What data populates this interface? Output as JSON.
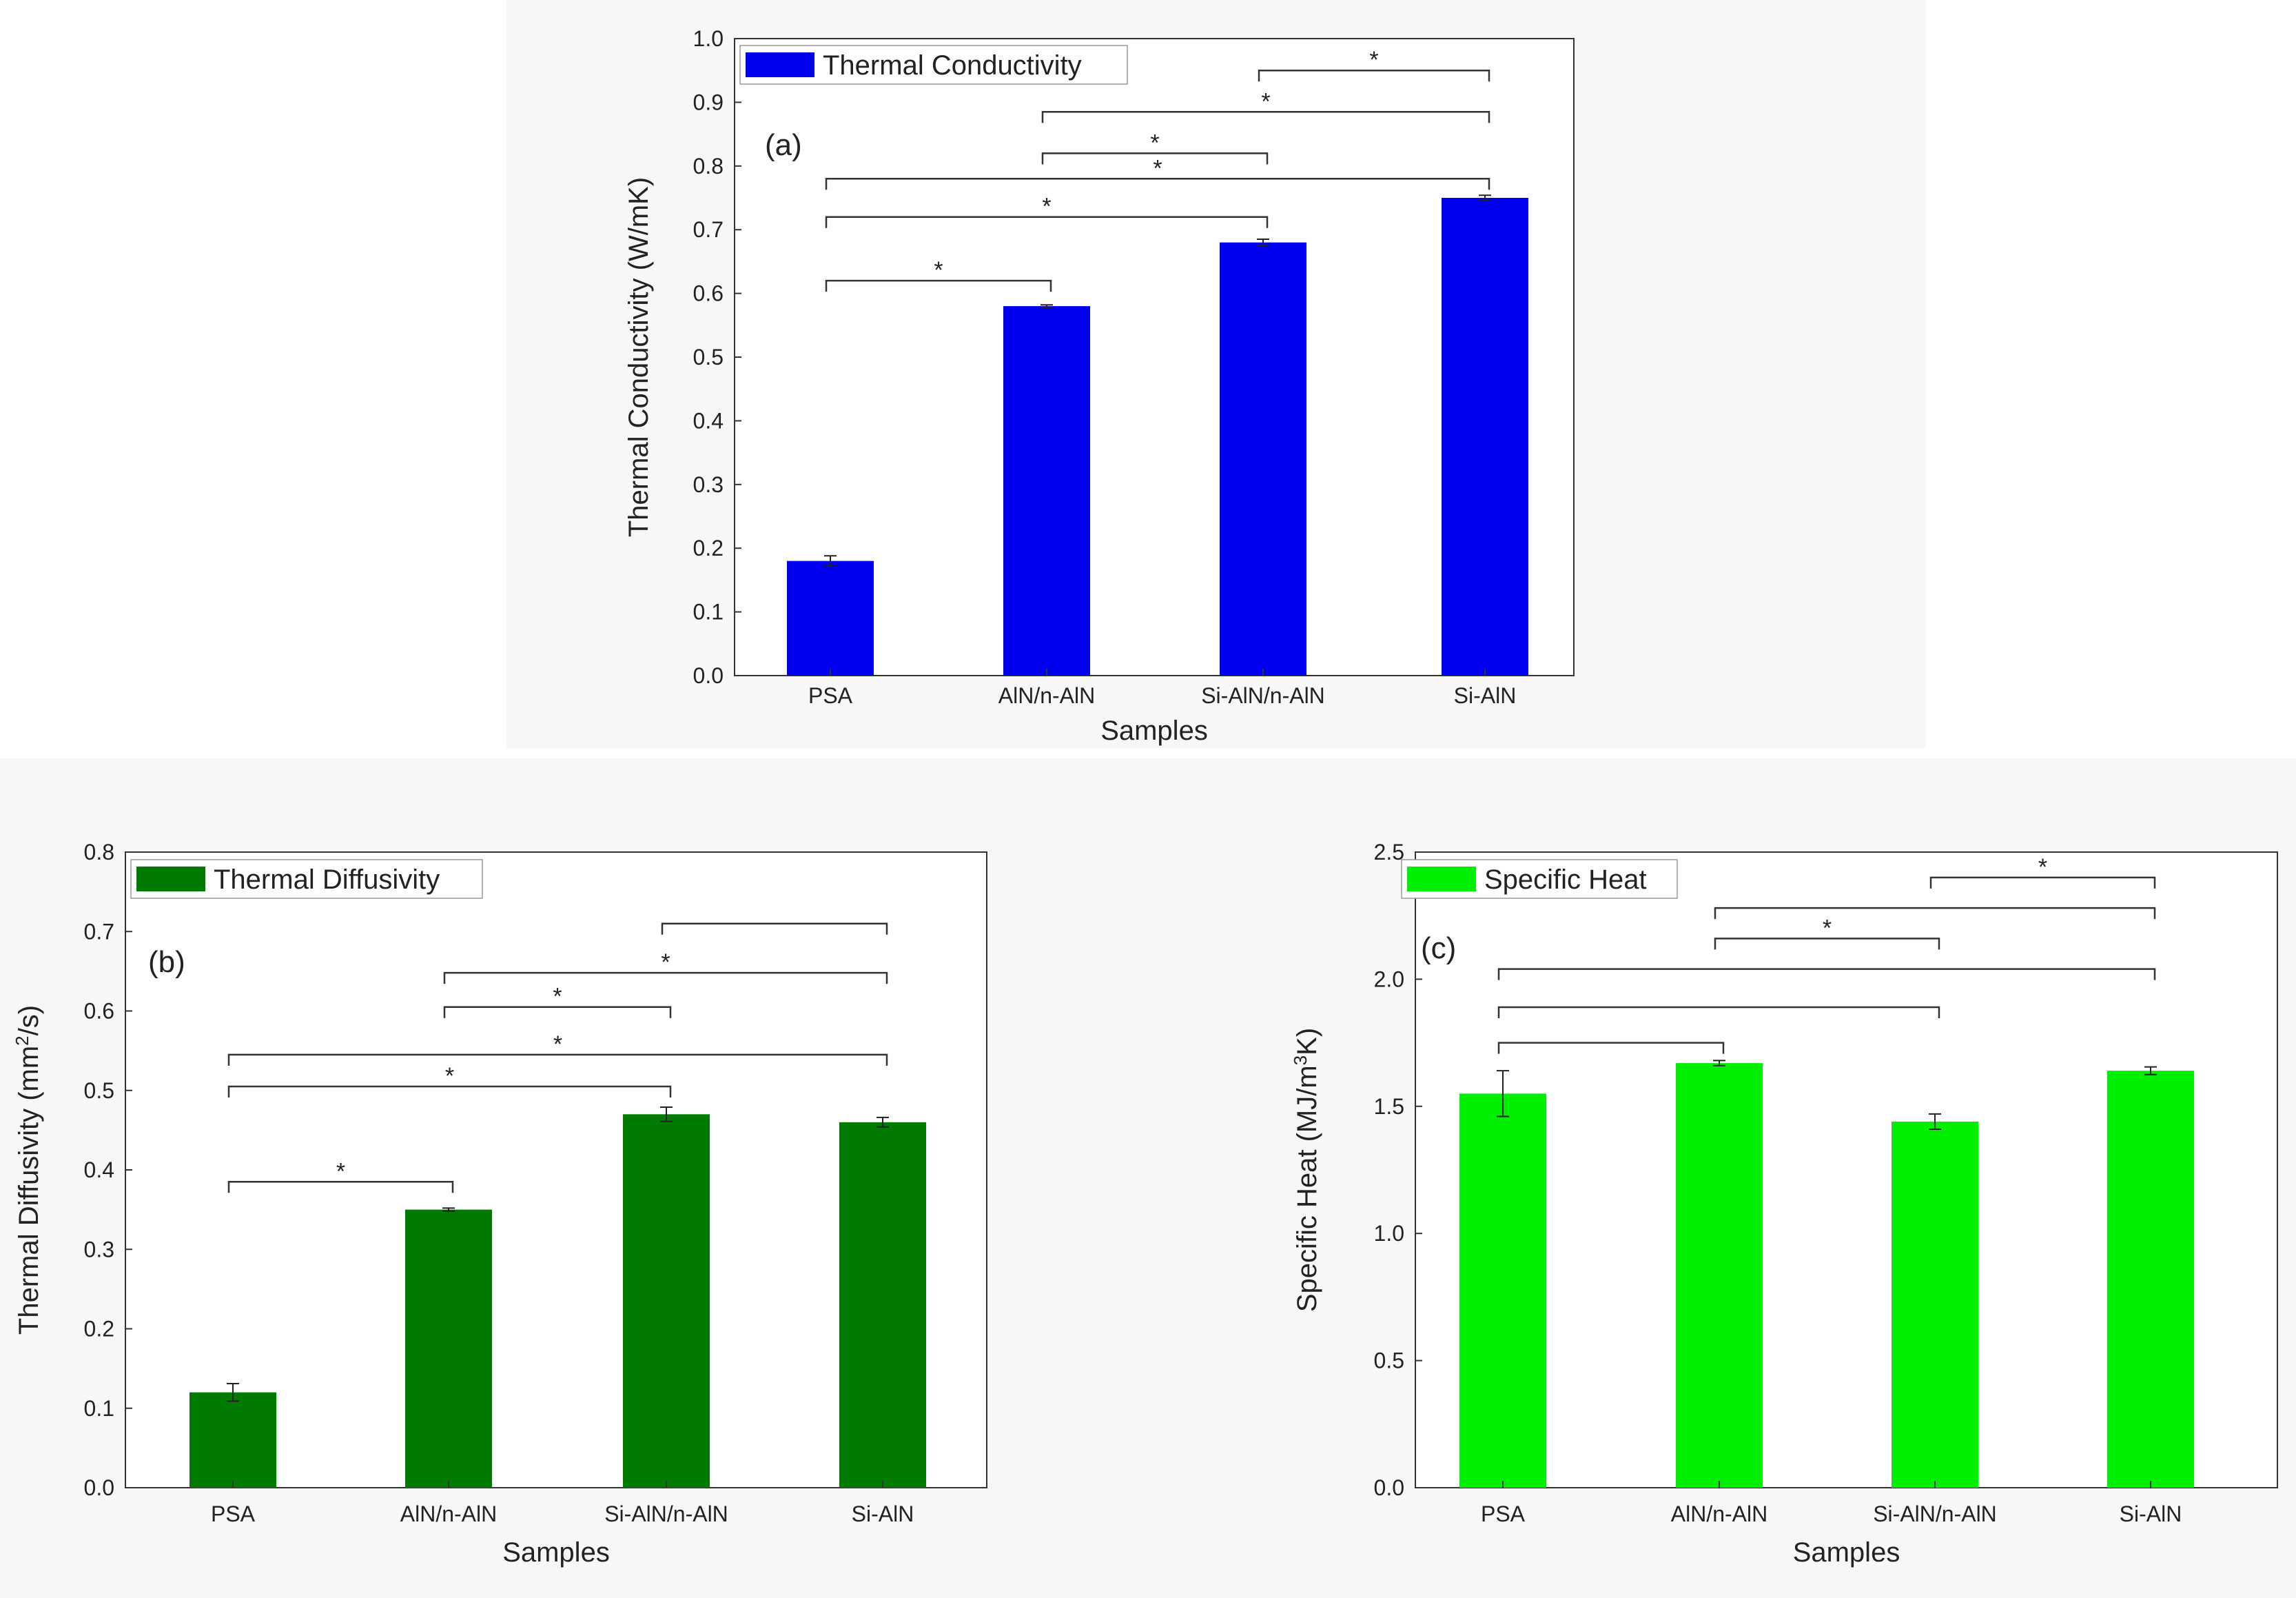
{
  "chart_data": [
    {
      "type": "bar",
      "panel_label": "(a)",
      "legend": "Thermal Conductivity",
      "color": "#0000ee",
      "xlabel": "Samples",
      "ylabel": "Thermal Conductivity (W/mK)",
      "ylim": [
        0,
        1.0
      ],
      "yticks": [
        "0.0",
        "0.1",
        "0.2",
        "0.3",
        "0.4",
        "0.5",
        "0.6",
        "0.7",
        "0.8",
        "0.9",
        "1.0"
      ],
      "categories": [
        "PSA",
        "AlN/n-AlN",
        "Si-AlN/n-AlN",
        "Si-AlN"
      ],
      "values": [
        0.18,
        0.58,
        0.68,
        0.75
      ],
      "errors": [
        0.008,
        0.002,
        0.005,
        0.004
      ],
      "significance": [
        {
          "from": 2,
          "to": 3,
          "y": 0.95,
          "label": "*"
        },
        {
          "from": 1,
          "to": 3,
          "y": 0.885,
          "label": "*"
        },
        {
          "from": 1,
          "to": 2,
          "y": 0.82,
          "label": "*"
        },
        {
          "from": 0,
          "to": 3,
          "y": 0.78,
          "label": "*"
        },
        {
          "from": 0,
          "to": 2,
          "y": 0.72,
          "label": "*"
        },
        {
          "from": 0,
          "to": 1,
          "y": 0.62,
          "label": "*"
        }
      ]
    },
    {
      "type": "bar",
      "panel_label": "(b)",
      "legend": "Thermal Diffusivity",
      "color": "#007a00",
      "xlabel": "Samples",
      "ylabel_main": "Thermal Diffusivity (mm",
      "ylabel_sup": "2",
      "ylabel_tail": "/s)",
      "ylim": [
        0,
        0.8
      ],
      "yticks": [
        "0.0",
        "0.1",
        "0.2",
        "0.3",
        "0.4",
        "0.5",
        "0.6",
        "0.7",
        "0.8"
      ],
      "categories": [
        "PSA",
        "AlN/n-AlN",
        "Si-AlN/n-AlN",
        "Si-AlN"
      ],
      "values": [
        0.12,
        0.35,
        0.47,
        0.46
      ],
      "errors": [
        0.011,
        0.002,
        0.009,
        0.006
      ],
      "significance": [
        {
          "from": 2,
          "to": 3,
          "y": 0.71,
          "label": ""
        },
        {
          "from": 1,
          "to": 3,
          "y": 0.648,
          "label": "*"
        },
        {
          "from": 1,
          "to": 2,
          "y": 0.605,
          "label": "*"
        },
        {
          "from": 0,
          "to": 3,
          "y": 0.545,
          "label": "*"
        },
        {
          "from": 0,
          "to": 2,
          "y": 0.505,
          "label": "*"
        },
        {
          "from": 0,
          "to": 1,
          "y": 0.385,
          "label": "*"
        }
      ]
    },
    {
      "type": "bar",
      "panel_label": "(c)",
      "legend": "Specific Heat",
      "color": "#00ee00",
      "xlabel": "Samples",
      "ylabel_main": "Specific Heat (MJ/m",
      "ylabel_sup": "3",
      "ylabel_tail": "K)",
      "ylim": [
        0,
        2.5
      ],
      "yticks": [
        "0.0",
        "0.5",
        "1.0",
        "1.5",
        "2.0",
        "2.5"
      ],
      "categories": [
        "PSA",
        "AlN/n-AlN",
        "Si-AlN/n-AlN",
        "Si-AlN"
      ],
      "values": [
        1.55,
        1.67,
        1.44,
        1.64
      ],
      "errors": [
        0.09,
        0.01,
        0.03,
        0.015
      ],
      "significance": [
        {
          "from": 2,
          "to": 3,
          "y": 2.4,
          "label": "*"
        },
        {
          "from": 1,
          "to": 3,
          "y": 2.28,
          "label": ""
        },
        {
          "from": 1,
          "to": 2,
          "y": 2.16,
          "label": "*"
        },
        {
          "from": 0,
          "to": 3,
          "y": 2.04,
          "label": ""
        },
        {
          "from": 0,
          "to": 2,
          "y": 1.89,
          "label": ""
        },
        {
          "from": 0,
          "to": 1,
          "y": 1.75,
          "label": ""
        }
      ]
    }
  ]
}
